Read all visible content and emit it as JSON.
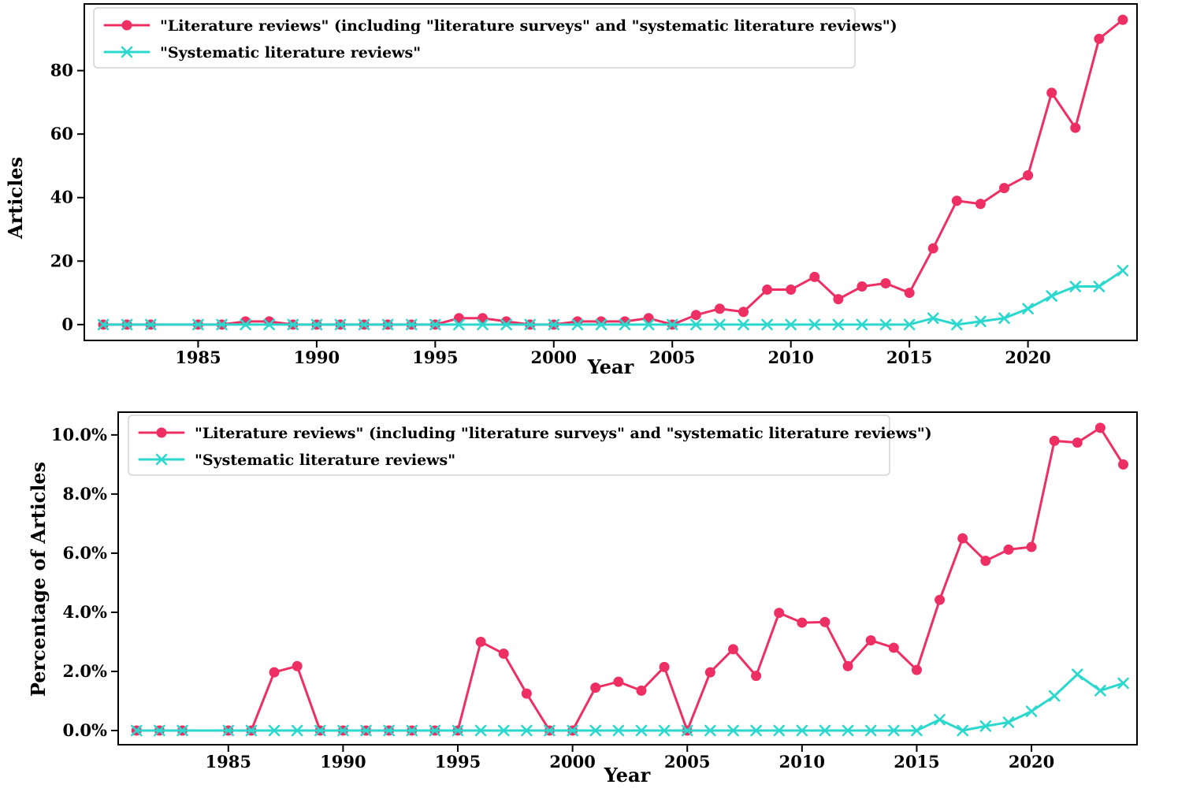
{
  "figure": {
    "background": "#ffffff",
    "axis_color": "#000000",
    "legend_border_color": "#d3d3d3",
    "legend_background": "#ffffff"
  },
  "legend": {
    "series1_label": "\"Literature reviews\" (including \"literature surveys\" and \"systematic literature reviews\")",
    "series2_label": "\"Systematic literature reviews\""
  },
  "chart_data": [
    {
      "type": "line",
      "title": "",
      "xlabel": "Year",
      "ylabel": "Articles",
      "grid": false,
      "legend_position": "upper-left",
      "xlim": [
        1980.2,
        2024.6
      ],
      "ylim": [
        -5,
        101
      ],
      "xticks": [
        1985,
        1990,
        1995,
        2000,
        2005,
        2010,
        2015,
        2020
      ],
      "xtick_labels": [
        "1985",
        "1990",
        "1995",
        "2000",
        "2005",
        "2010",
        "2015",
        "2020"
      ],
      "yticks": [
        0,
        20,
        40,
        60,
        80
      ],
      "ytick_labels": [
        "0",
        "20",
        "40",
        "60",
        "80"
      ],
      "x": [
        1981,
        1982,
        1983,
        1985,
        1986,
        1987,
        1988,
        1989,
        1990,
        1991,
        1992,
        1993,
        1994,
        1995,
        1996,
        1997,
        1998,
        1999,
        2000,
        2001,
        2002,
        2003,
        2004,
        2005,
        2006,
        2007,
        2008,
        2009,
        2010,
        2011,
        2012,
        2013,
        2014,
        2015,
        2016,
        2017,
        2018,
        2019,
        2020,
        2021,
        2022,
        2023,
        2024
      ],
      "series": [
        {
          "name": "\"Literature reviews\" (including \"literature surveys\" and \"systematic literature reviews\")",
          "color": "#EE2F63",
          "marker": "circle",
          "values": [
            0,
            0,
            0,
            0,
            0,
            1,
            1,
            0,
            0,
            0,
            0,
            0,
            0,
            0,
            2,
            2,
            1,
            0,
            0,
            1,
            1,
            1,
            2,
            0,
            3,
            5,
            4,
            11,
            11,
            15,
            8,
            12,
            13,
            10,
            24,
            39,
            38,
            43,
            47,
            73,
            62,
            90,
            96
          ]
        },
        {
          "name": "\"Systematic literature reviews\"",
          "color": "#2BD8CE",
          "marker": "x",
          "values": [
            0,
            0,
            0,
            0,
            0,
            0,
            0,
            0,
            0,
            0,
            0,
            0,
            0,
            0,
            0,
            0,
            0,
            0,
            0,
            0,
            0,
            0,
            0,
            0,
            0,
            0,
            0,
            0,
            0,
            0,
            0,
            0,
            0,
            0,
            2,
            0,
            1,
            2,
            5,
            9,
            12,
            12,
            17
          ]
        }
      ]
    },
    {
      "type": "line",
      "title": "",
      "xlabel": "Year",
      "ylabel": "Percentage of Articles",
      "grid": false,
      "legend_position": "upper-left",
      "xlim": [
        1980.2,
        2024.6
      ],
      "ylim": [
        -0.48,
        10.77
      ],
      "xticks": [
        1985,
        1990,
        1995,
        2000,
        2005,
        2010,
        2015,
        2020
      ],
      "xtick_labels": [
        "1985",
        "1990",
        "1995",
        "2000",
        "2005",
        "2010",
        "2015",
        "2020"
      ],
      "yticks": [
        0,
        2,
        4,
        6,
        8,
        10
      ],
      "ytick_labels": [
        "0.0%",
        "2.0%",
        "4.0%",
        "6.0%",
        "8.0%",
        "10.0%"
      ],
      "x": [
        1981,
        1982,
        1983,
        1985,
        1986,
        1987,
        1988,
        1989,
        1990,
        1991,
        1992,
        1993,
        1994,
        1995,
        1996,
        1997,
        1998,
        1999,
        2000,
        2001,
        2002,
        2003,
        2004,
        2005,
        2006,
        2007,
        2008,
        2009,
        2010,
        2011,
        2012,
        2013,
        2014,
        2015,
        2016,
        2017,
        2018,
        2019,
        2020,
        2021,
        2022,
        2023,
        2024
      ],
      "series": [
        {
          "name": "\"Literature reviews\" (including \"literature surveys\" and \"systematic literature reviews\")",
          "color": "#EE2F63",
          "marker": "circle",
          "values": [
            0,
            0,
            0,
            0,
            0,
            1.97,
            2.18,
            0,
            0,
            0,
            0,
            0,
            0,
            0,
            3.0,
            2.6,
            1.25,
            0,
            0,
            1.45,
            1.65,
            1.35,
            2.15,
            0,
            1.97,
            2.75,
            1.85,
            3.98,
            3.65,
            3.67,
            2.18,
            3.05,
            2.8,
            2.05,
            4.42,
            6.5,
            5.74,
            6.12,
            6.21,
            9.8,
            9.74,
            10.24,
            9.0
          ]
        },
        {
          "name": "\"Systematic literature reviews\"",
          "color": "#2BD8CE",
          "marker": "x",
          "values": [
            0,
            0,
            0,
            0,
            0,
            0,
            0,
            0,
            0,
            0,
            0,
            0,
            0,
            0,
            0,
            0,
            0,
            0,
            0,
            0,
            0,
            0,
            0,
            0,
            0,
            0,
            0,
            0,
            0,
            0,
            0,
            0,
            0,
            0,
            0.37,
            0,
            0.15,
            0.28,
            0.65,
            1.17,
            1.9,
            1.35,
            1.6
          ]
        }
      ]
    }
  ]
}
